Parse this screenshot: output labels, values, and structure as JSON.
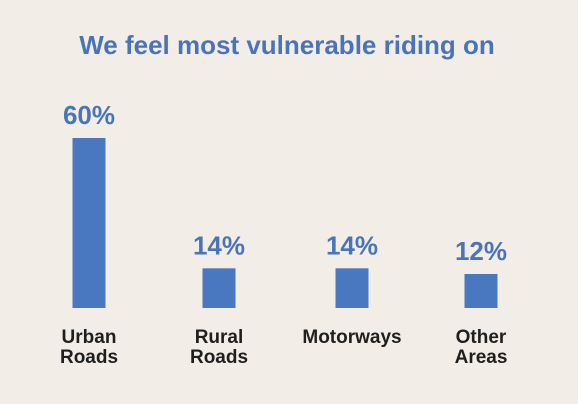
{
  "chart_data": {
    "type": "bar",
    "title": "We feel most vulnerable riding on",
    "categories": [
      "Urban Roads",
      "Rural Roads",
      "Motorways",
      "Other Areas"
    ],
    "values": [
      60,
      14,
      14,
      12
    ],
    "value_labels": [
      "60%",
      "14%",
      "14%",
      "12%"
    ],
    "color": "#4a78c0"
  }
}
